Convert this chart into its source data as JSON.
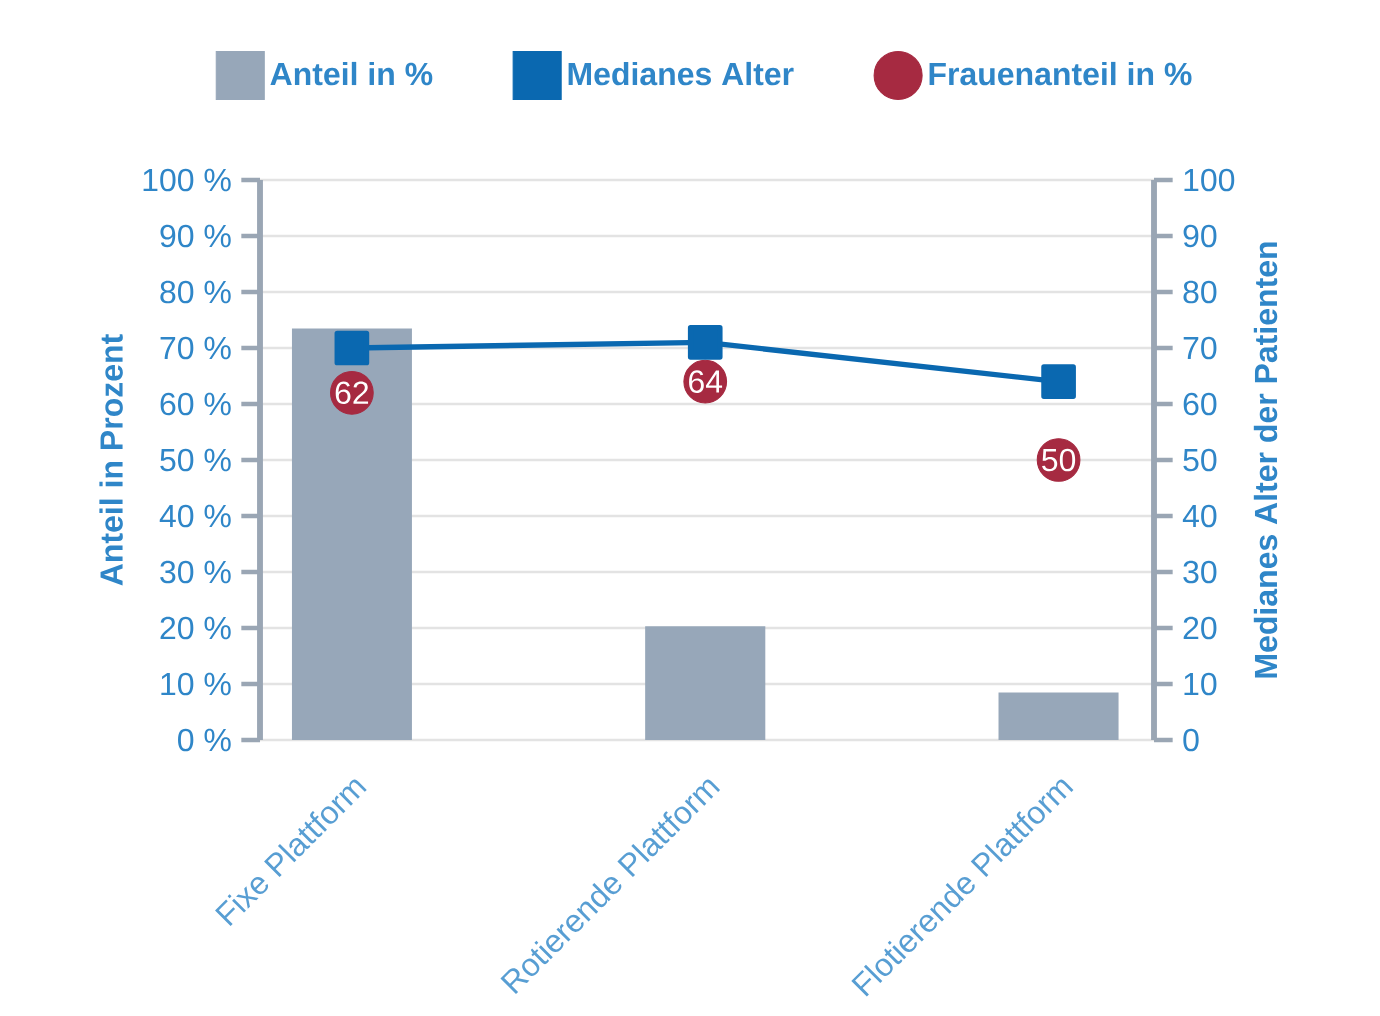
{
  "chart_data": {
    "type": "bar",
    "categories": [
      "Fixe Plattform",
      "Rotierende Plattform",
      "Flotierende Plattform"
    ],
    "ylabel": "Anteil in Prozent",
    "y2label": "Medianes Alter der Patienten",
    "ylim": [
      0,
      100
    ],
    "yticks": [
      {
        "value": 0,
        "label": "0 %"
      },
      {
        "value": 10,
        "label": "10 %"
      },
      {
        "value": 20,
        "label": "20 %"
      },
      {
        "value": 30,
        "label": "30 %"
      },
      {
        "value": 40,
        "label": "40 %"
      },
      {
        "value": 50,
        "label": "50 %"
      },
      {
        "value": 60,
        "label": "60 %"
      },
      {
        "value": 70,
        "label": "70 %"
      },
      {
        "value": 80,
        "label": "80 %"
      },
      {
        "value": 90,
        "label": "90 %"
      },
      {
        "value": 100,
        "label": "100 %"
      }
    ],
    "y2lim": [
      0,
      100
    ],
    "y2ticks": [
      0,
      10,
      20,
      30,
      40,
      50,
      60,
      70,
      80,
      90,
      100
    ],
    "grid": "y",
    "legend": "top",
    "series": [
      {
        "name": "Anteil in %",
        "color": "#97a7b9",
        "values": [
          73.5,
          20.3,
          8.5
        ]
      },
      {
        "name": "Medianes Alter",
        "type": "line",
        "axis": "y2",
        "color": "#0a68b0",
        "marker": "square",
        "values": [
          70,
          71,
          64
        ]
      },
      {
        "name": "Frauenanteil in %",
        "type": "scatter",
        "color": "#a62a41",
        "marker": "circle",
        "values": [
          62,
          64,
          50
        ],
        "value_labels": [
          "62",
          "64",
          "50"
        ]
      }
    ]
  }
}
